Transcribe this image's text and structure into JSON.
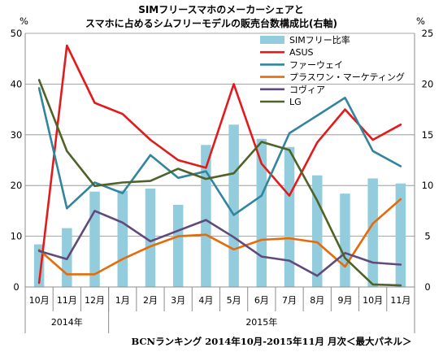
{
  "chart_data": {
    "type": "bar",
    "title": "SIMフリースマホのメーカーシェアと",
    "subtitle": "スマホに占めるシムフリーモデルの販売台数構成比(右軸)",
    "left_unit": "%",
    "right_unit": "%",
    "ylim_left": [
      0,
      50
    ],
    "ylim_right": [
      0,
      25
    ],
    "yticks_left": [
      0,
      10,
      20,
      30,
      40,
      50
    ],
    "yticks_right": [
      0,
      5,
      10,
      15,
      20,
      25
    ],
    "categories": [
      "10月",
      "11月",
      "12月",
      "1月",
      "2月",
      "3月",
      "4月",
      "5月",
      "6月",
      "7月",
      "8月",
      "9月",
      "10月",
      "11月"
    ],
    "year_groups": [
      {
        "label": "2014年",
        "start": 0,
        "end": 2
      },
      {
        "label": "2015年",
        "start": 3,
        "end": 13
      }
    ],
    "bar_series": {
      "name": "SIMフリー比率",
      "axis": "right",
      "color": "#93CDDD",
      "values": [
        4.2,
        5.8,
        9.4,
        9.5,
        9.7,
        8.1,
        14.0,
        16.0,
        14.6,
        13.8,
        11.0,
        9.2,
        10.7,
        10.2
      ]
    },
    "line_series": [
      {
        "name": "ASUS",
        "axis": "left",
        "color": "#E31A1C",
        "values": [
          0.8,
          47.6,
          36.3,
          34.1,
          29.0,
          25.0,
          23.5,
          40.0,
          24.3,
          18.0,
          28.5,
          35.0,
          29.0,
          32.0
        ]
      },
      {
        "name": "ファーウェイ",
        "axis": "left",
        "color": "#31859C",
        "values": [
          39.2,
          15.5,
          20.6,
          18.5,
          26.0,
          21.5,
          22.8,
          14.2,
          18.0,
          30.3,
          33.8,
          37.3,
          26.8,
          23.8
        ]
      },
      {
        "name": "プラスワン・マーケティング",
        "axis": "left",
        "color": "#E46C0A",
        "values": [
          7.3,
          2.5,
          2.5,
          5.5,
          8.0,
          10.0,
          10.3,
          7.4,
          9.3,
          9.6,
          8.8,
          4.0,
          12.5,
          17.3
        ]
      },
      {
        "name": "コヴィア",
        "axis": "left",
        "color": "#604A7B",
        "values": [
          7.1,
          5.5,
          15.0,
          12.7,
          9.0,
          11.1,
          13.2,
          9.8,
          6.0,
          5.2,
          2.2,
          6.7,
          4.8,
          4.4
        ]
      },
      {
        "name": "LG",
        "axis": "left",
        "color": "#4F6228",
        "values": [
          40.8,
          26.8,
          19.9,
          20.6,
          20.9,
          23.3,
          21.3,
          22.4,
          28.6,
          27.0,
          17.0,
          5.7,
          0.5,
          0.3
        ]
      }
    ],
    "legend_position": "top-right",
    "grid": true,
    "source_note": "BCNランキング 2014年10月-2015年11月 月次＜最大パネル＞"
  }
}
